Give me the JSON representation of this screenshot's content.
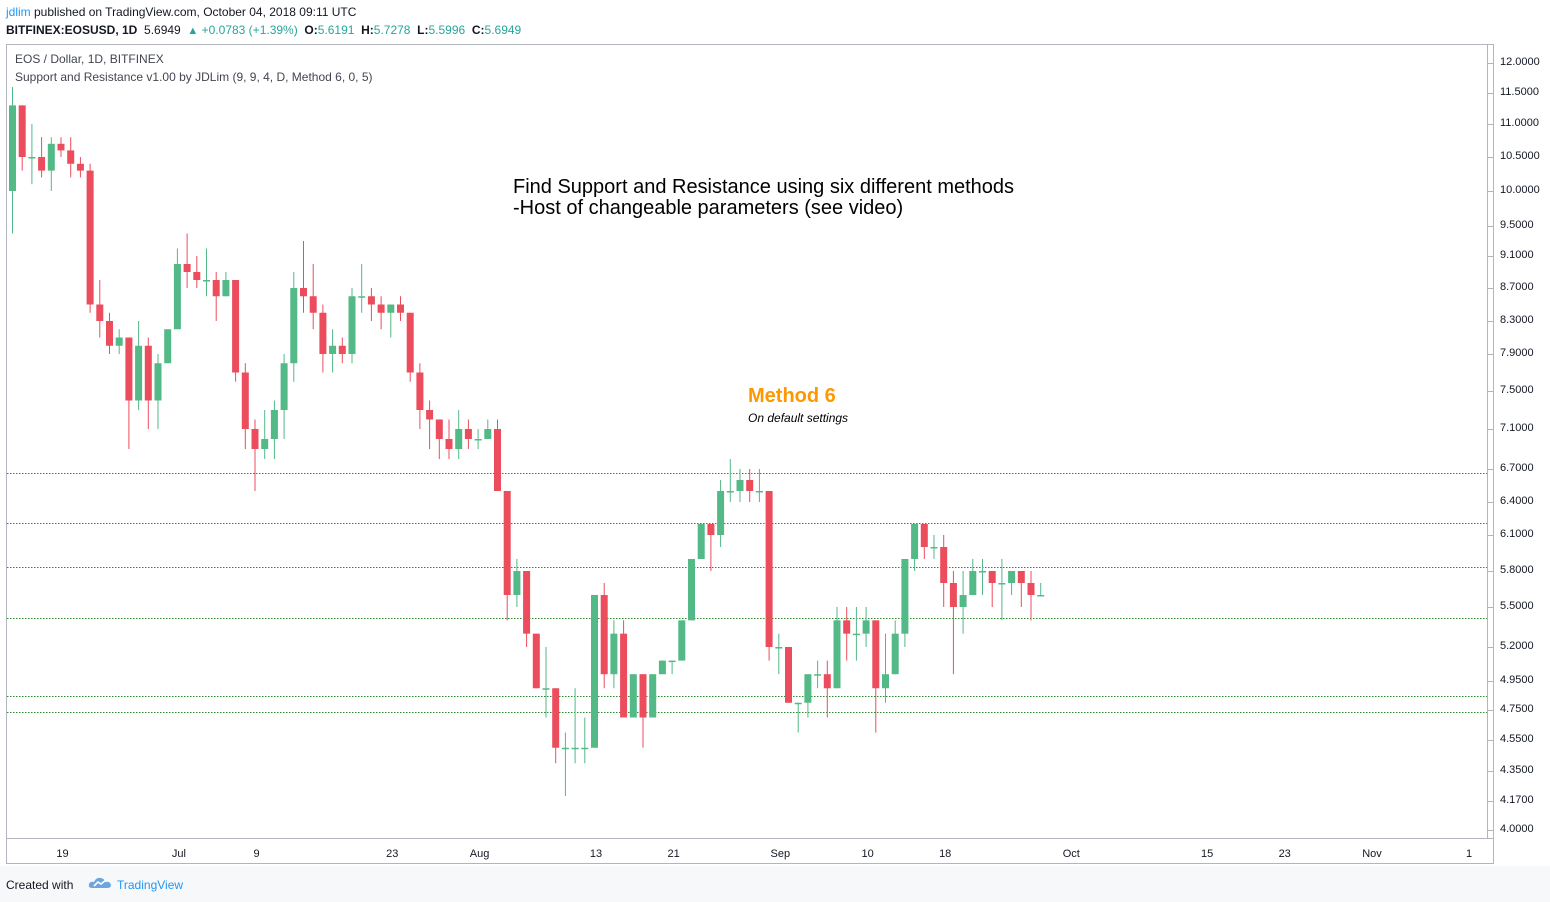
{
  "header": {
    "user": "jdlim",
    "published": " published on TradingView.com, October 04, 2018 09:11 UTC",
    "symbol": "BITFINEX:EOSUSD, 1D",
    "last": "5.6949",
    "change": "+0.0783 (+1.39%)",
    "o_label": "O:",
    "o_value": "5.6191",
    "h_label": "H:",
    "h_value": "5.7278",
    "l_label": "L:",
    "l_value": "5.5996",
    "c_label": "C:",
    "c_value": "5.6949"
  },
  "legend": {
    "title": "EOS / Dollar, 1D, BITFINEX",
    "indicator": "Support and Resistance v1.00 by JDLim (9, 9, 4, D, Method 6, 0, 5)"
  },
  "annotations": {
    "line1": "Find Support and Resistance using six different methods",
    "line2": "-Host of changeable parameters (see video)",
    "method": "Method 6",
    "method_sub": "On default settings"
  },
  "footer": {
    "created_with": "Created with",
    "brand": "TradingView"
  },
  "colors": {
    "up": "#53b987",
    "down": "#eb4d5c",
    "resistance": "#e03030",
    "support": "#2e8b2e"
  },
  "chart_data": {
    "type": "candlestick",
    "symbol": "BITFINEX:EOSUSD",
    "interval": "1D",
    "y_ticks": [
      "12.0000",
      "11.5000",
      "11.0000",
      "10.5000",
      "10.0000",
      "9.5000",
      "9.1000",
      "8.7000",
      "8.3000",
      "7.9000",
      "7.5000",
      "7.1000",
      "6.7000",
      "6.4000",
      "6.1000",
      "5.8000",
      "5.5000",
      "5.2000",
      "4.9500",
      "4.7500",
      "4.5500",
      "4.3500",
      "4.1700",
      "4.0000"
    ],
    "x_ticks": [
      {
        "label": "19",
        "day": 0
      },
      {
        "label": "Jul",
        "day": 12
      },
      {
        "label": "9",
        "day": 20
      },
      {
        "label": "23",
        "day": 34
      },
      {
        "label": "Aug",
        "day": 43
      },
      {
        "label": "13",
        "day": 55
      },
      {
        "label": "21",
        "day": 63
      },
      {
        "label": "Sep",
        "day": 74
      },
      {
        "label": "10",
        "day": 83
      },
      {
        "label": "18",
        "day": 91
      },
      {
        "label": "Oct",
        "day": 104
      },
      {
        "label": "15",
        "day": 118
      },
      {
        "label": "23",
        "day": 126
      },
      {
        "label": "Nov",
        "day": 135
      },
      {
        "label": "1",
        "day": 145
      }
    ],
    "levels": [
      {
        "price": 6.66,
        "kind": "resistance"
      },
      {
        "price": 6.21,
        "kind": "resistance"
      },
      {
        "price": 5.83,
        "kind": "resistance"
      },
      {
        "price": 5.42,
        "kind": "support"
      },
      {
        "price": 4.85,
        "kind": "support"
      },
      {
        "price": 4.74,
        "kind": "support"
      }
    ],
    "candles": [
      [
        10.0,
        11.3,
        9.4,
        11.6
      ],
      [
        11.3,
        10.5,
        10.3,
        11.3
      ],
      [
        10.5,
        10.5,
        10.1,
        11.0
      ],
      [
        10.5,
        10.3,
        10.2,
        10.8
      ],
      [
        10.3,
        10.7,
        10.0,
        10.8
      ],
      [
        10.7,
        10.6,
        10.5,
        10.8
      ],
      [
        10.6,
        10.4,
        10.2,
        10.8
      ],
      [
        10.4,
        10.3,
        10.2,
        10.5
      ],
      [
        10.3,
        8.5,
        8.4,
        10.4
      ],
      [
        8.5,
        8.3,
        8.1,
        8.8
      ],
      [
        8.3,
        8.0,
        7.9,
        8.4
      ],
      [
        8.0,
        8.1,
        7.9,
        8.2
      ],
      [
        8.1,
        7.4,
        6.9,
        8.1
      ],
      [
        7.4,
        8.0,
        7.3,
        8.3
      ],
      [
        8.0,
        7.4,
        7.1,
        8.1
      ],
      [
        7.4,
        7.8,
        7.1,
        7.9
      ],
      [
        7.8,
        8.2,
        7.8,
        8.2
      ],
      [
        8.2,
        9.0,
        8.2,
        9.2
      ],
      [
        9.0,
        8.9,
        8.7,
        9.4
      ],
      [
        8.9,
        8.8,
        8.7,
        9.1
      ],
      [
        8.8,
        8.8,
        8.6,
        9.2
      ],
      [
        8.8,
        8.6,
        8.3,
        8.9
      ],
      [
        8.6,
        8.8,
        8.6,
        8.9
      ],
      [
        8.8,
        7.7,
        7.6,
        8.8
      ],
      [
        7.7,
        7.1,
        6.9,
        7.8
      ],
      [
        7.1,
        6.9,
        6.5,
        7.2
      ],
      [
        6.9,
        7.0,
        6.8,
        7.3
      ],
      [
        7.0,
        7.3,
        6.8,
        7.4
      ],
      [
        7.3,
        7.8,
        7.0,
        7.9
      ],
      [
        7.8,
        8.7,
        7.6,
        8.9
      ],
      [
        8.7,
        8.6,
        8.4,
        9.3
      ],
      [
        8.6,
        8.4,
        8.2,
        9.0
      ],
      [
        8.4,
        7.9,
        7.7,
        8.5
      ],
      [
        7.9,
        8.0,
        7.7,
        8.2
      ],
      [
        8.0,
        7.9,
        7.8,
        8.1
      ],
      [
        7.9,
        8.6,
        7.8,
        8.7
      ],
      [
        8.6,
        8.6,
        8.4,
        9.0
      ],
      [
        8.6,
        8.5,
        8.3,
        8.7
      ],
      [
        8.5,
        8.4,
        8.2,
        8.6
      ],
      [
        8.4,
        8.5,
        8.1,
        8.5
      ],
      [
        8.5,
        8.4,
        8.3,
        8.6
      ],
      [
        8.4,
        7.7,
        7.6,
        8.4
      ],
      [
        7.7,
        7.3,
        7.1,
        7.8
      ],
      [
        7.3,
        7.2,
        6.9,
        7.4
      ],
      [
        7.2,
        7.0,
        6.8,
        7.2
      ],
      [
        7.0,
        6.9,
        6.8,
        7.2
      ],
      [
        6.9,
        7.1,
        6.8,
        7.3
      ],
      [
        7.1,
        7.0,
        6.9,
        7.2
      ],
      [
        7.0,
        7.0,
        6.9,
        7.1
      ],
      [
        7.0,
        7.1,
        7.0,
        7.2
      ],
      [
        7.1,
        6.5,
        6.5,
        7.2
      ],
      [
        6.5,
        5.6,
        5.4,
        6.5
      ],
      [
        5.6,
        5.8,
        5.5,
        5.9
      ],
      [
        5.8,
        5.3,
        5.2,
        5.8
      ],
      [
        5.3,
        4.9,
        4.9,
        5.3
      ],
      [
        4.9,
        4.9,
        4.7,
        5.2
      ],
      [
        4.9,
        4.5,
        4.4,
        4.9
      ],
      [
        4.5,
        4.5,
        4.2,
        4.6
      ],
      [
        4.5,
        4.5,
        4.4,
        4.9
      ],
      [
        4.5,
        4.5,
        4.4,
        4.7
      ],
      [
        4.5,
        5.6,
        4.5,
        5.6
      ],
      [
        5.6,
        5.0,
        4.9,
        5.7
      ],
      [
        5.0,
        5.3,
        4.9,
        5.4
      ],
      [
        5.3,
        4.7,
        4.7,
        5.4
      ],
      [
        4.7,
        5.0,
        4.7,
        5.0
      ],
      [
        5.0,
        4.7,
        4.5,
        5.0
      ],
      [
        4.7,
        5.0,
        4.7,
        5.0
      ],
      [
        5.0,
        5.1,
        5.0,
        5.1
      ],
      [
        5.1,
        5.1,
        5.0,
        5.1
      ],
      [
        5.1,
        5.4,
        5.1,
        5.4
      ],
      [
        5.4,
        5.9,
        5.4,
        5.9
      ],
      [
        5.9,
        6.2,
        5.9,
        6.2
      ],
      [
        6.2,
        6.1,
        5.8,
        6.2
      ],
      [
        6.1,
        6.5,
        6.0,
        6.6
      ],
      [
        6.5,
        6.5,
        6.4,
        6.8
      ],
      [
        6.5,
        6.6,
        6.4,
        6.7
      ],
      [
        6.6,
        6.5,
        6.4,
        6.7
      ],
      [
        6.5,
        6.5,
        6.4,
        6.7
      ],
      [
        6.5,
        5.2,
        5.1,
        6.5
      ],
      [
        5.2,
        5.2,
        5.0,
        5.3
      ],
      [
        5.2,
        4.8,
        4.8,
        5.2
      ],
      [
        4.8,
        4.8,
        4.6,
        4.8
      ],
      [
        4.8,
        5.0,
        4.7,
        5.0
      ],
      [
        5.0,
        5.0,
        4.9,
        5.1
      ],
      [
        5.0,
        4.9,
        4.7,
        5.1
      ],
      [
        4.9,
        5.4,
        4.9,
        5.5
      ],
      [
        5.4,
        5.3,
        5.1,
        5.5
      ],
      [
        5.3,
        5.3,
        5.1,
        5.5
      ],
      [
        5.3,
        5.4,
        5.2,
        5.5
      ],
      [
        5.4,
        4.9,
        4.6,
        5.4
      ],
      [
        4.9,
        5.0,
        4.8,
        5.3
      ],
      [
        5.0,
        5.3,
        5.0,
        5.4
      ],
      [
        5.3,
        5.9,
        5.2,
        5.9
      ],
      [
        5.9,
        6.2,
        5.8,
        6.2
      ],
      [
        6.2,
        6.0,
        5.9,
        6.2
      ],
      [
        6.0,
        6.0,
        5.9,
        6.1
      ],
      [
        6.0,
        5.7,
        5.5,
        6.1
      ],
      [
        5.7,
        5.5,
        5.0,
        5.8
      ],
      [
        5.5,
        5.6,
        5.3,
        5.8
      ],
      [
        5.6,
        5.8,
        5.6,
        5.9
      ],
      [
        5.8,
        5.8,
        5.6,
        5.9
      ],
      [
        5.8,
        5.7,
        5.5,
        5.8
      ],
      [
        5.7,
        5.7,
        5.4,
        5.9
      ],
      [
        5.7,
        5.8,
        5.6,
        5.8
      ],
      [
        5.8,
        5.7,
        5.5,
        5.8
      ],
      [
        5.7,
        5.6,
        5.4,
        5.8
      ],
      [
        5.6,
        5.6,
        5.6,
        5.7
      ]
    ]
  }
}
